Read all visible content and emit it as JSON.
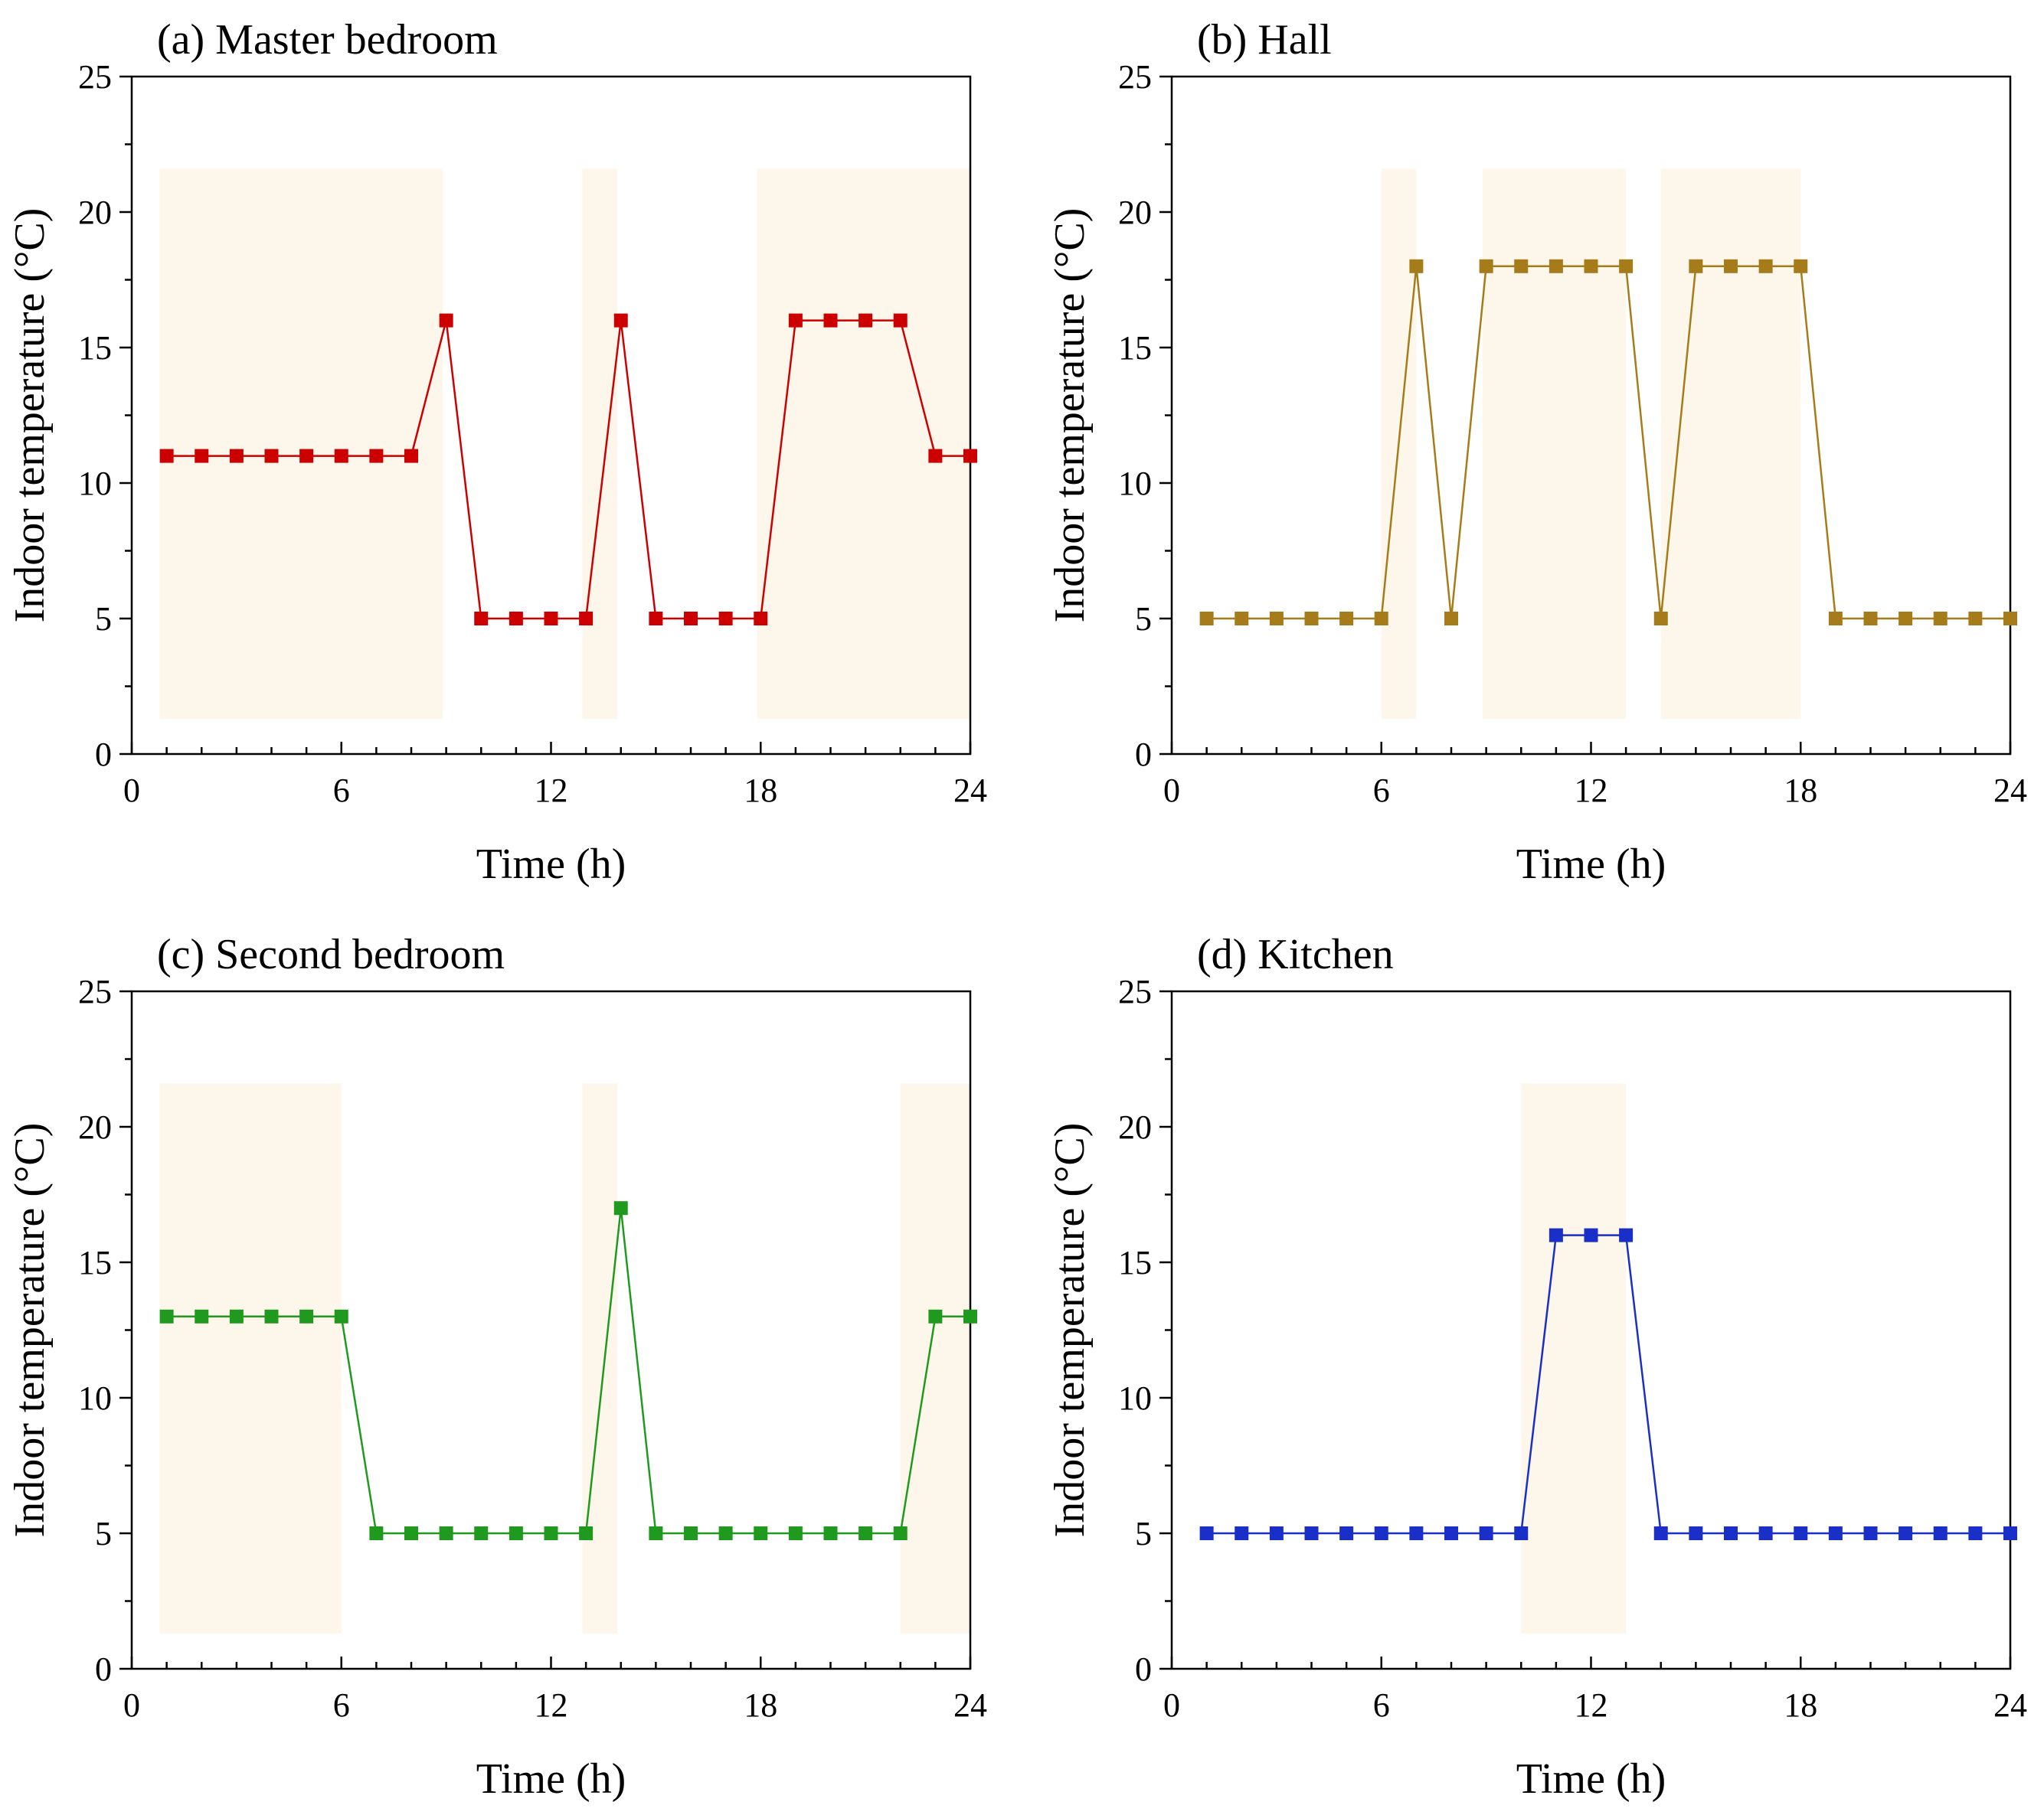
{
  "chart_data": [
    {
      "type": "line",
      "title": "(a) Master bedroom",
      "xlabel": "Time (h)",
      "ylabel": "Indoor temperature (°C)",
      "xlim": [
        0,
        24
      ],
      "ylim": [
        0,
        25
      ],
      "xticks": [
        "0",
        "6",
        "12",
        "18",
        "24"
      ],
      "yticks": [
        "0",
        "5",
        "10",
        "15",
        "20",
        "25"
      ],
      "color": "#cc0000",
      "marker": "square",
      "grid": false,
      "shaded_periods_h": [
        [
          0.8,
          8.9
        ],
        [
          12.9,
          13.9
        ],
        [
          17.9,
          24
        ]
      ],
      "series": [
        {
          "x": [
            1,
            2,
            3,
            4,
            5,
            6,
            7,
            8,
            9,
            10,
            11,
            12,
            13,
            14,
            15,
            16,
            17,
            18,
            19,
            20,
            21,
            22,
            23,
            24
          ],
          "values": [
            11,
            11,
            11,
            11,
            11,
            11,
            11,
            11,
            16,
            5,
            5,
            5,
            5,
            16,
            5,
            5,
            5,
            5,
            16,
            16,
            16,
            16,
            11,
            11
          ]
        }
      ]
    },
    {
      "type": "line",
      "title": "(b) Hall",
      "xlabel": "Time (h)",
      "ylabel": "Indoor temperature (°C)",
      "xlim": [
        0,
        24
      ],
      "ylim": [
        0,
        25
      ],
      "xticks": [
        "0",
        "6",
        "12",
        "18",
        "24"
      ],
      "yticks": [
        "0",
        "5",
        "10",
        "15",
        "20",
        "25"
      ],
      "color": "#a67c1a",
      "marker": "square",
      "grid": false,
      "shaded_periods_h": [
        [
          6.0,
          7.0
        ],
        [
          8.9,
          13.0
        ],
        [
          14.0,
          18.0
        ]
      ],
      "series": [
        {
          "x": [
            1,
            2,
            3,
            4,
            5,
            6,
            7,
            8,
            9,
            10,
            11,
            12,
            13,
            14,
            15,
            16,
            17,
            18,
            19,
            20,
            21,
            22,
            23,
            24
          ],
          "values": [
            5,
            5,
            5,
            5,
            5,
            5,
            18,
            5,
            18,
            18,
            18,
            18,
            18,
            5,
            18,
            18,
            18,
            18,
            5,
            5,
            5,
            5,
            5,
            5
          ]
        }
      ]
    },
    {
      "type": "line",
      "title": "(c) Second bedroom",
      "xlabel": "Time (h)",
      "ylabel": "Indoor temperature (°C)",
      "xlim": [
        0,
        24
      ],
      "ylim": [
        0,
        25
      ],
      "xticks": [
        "0",
        "6",
        "12",
        "18",
        "24"
      ],
      "yticks": [
        "0",
        "5",
        "10",
        "15",
        "20",
        "25"
      ],
      "color": "#1f9a1f",
      "marker": "square",
      "grid": false,
      "shaded_periods_h": [
        [
          0.8,
          6.0
        ],
        [
          12.9,
          13.9
        ],
        [
          22.0,
          24
        ]
      ],
      "series": [
        {
          "x": [
            1,
            2,
            3,
            4,
            5,
            6,
            7,
            8,
            9,
            10,
            11,
            12,
            13,
            14,
            15,
            16,
            17,
            18,
            19,
            20,
            21,
            22,
            23,
            24
          ],
          "values": [
            13,
            13,
            13,
            13,
            13,
            13,
            5,
            5,
            5,
            5,
            5,
            5,
            5,
            17,
            5,
            5,
            5,
            5,
            5,
            5,
            5,
            5,
            13,
            13
          ]
        }
      ]
    },
    {
      "type": "line",
      "title": "(d) Kitchen",
      "xlabel": "Time (h)",
      "ylabel": "Indoor temperature (°C)",
      "xlim": [
        0,
        24
      ],
      "ylim": [
        0,
        25
      ],
      "xticks": [
        "0",
        "6",
        "12",
        "18",
        "24"
      ],
      "yticks": [
        "0",
        "5",
        "10",
        "15",
        "20",
        "25"
      ],
      "color": "#1a2ec8",
      "marker": "square",
      "grid": false,
      "shaded_periods_h": [
        [
          10.0,
          13.0
        ]
      ],
      "series": [
        {
          "x": [
            1,
            2,
            3,
            4,
            5,
            6,
            7,
            8,
            9,
            10,
            11,
            12,
            13,
            14,
            15,
            16,
            17,
            18,
            19,
            20,
            21,
            22,
            23,
            24
          ],
          "values": [
            5,
            5,
            5,
            5,
            5,
            5,
            5,
            5,
            5,
            5,
            16,
            16,
            16,
            5,
            5,
            5,
            5,
            5,
            5,
            5,
            5,
            5,
            5,
            5
          ]
        }
      ]
    }
  ],
  "shade_color": "#fdf6ea",
  "shade_ymin": 1.3,
  "shade_ymax": 21.6
}
